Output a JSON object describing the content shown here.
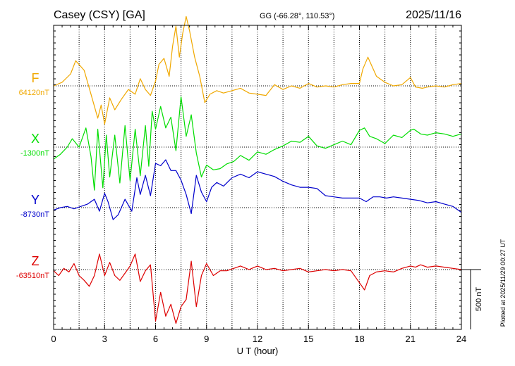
{
  "header": {
    "station": "Casey (CSY)  [GA]",
    "coords": "GG (-66.28°, 110.53°)",
    "date": "2025/11/16"
  },
  "footer": {
    "xlabel": "U T (hour)",
    "plotted": "Plotted at 2025/11/29 00:27 UT"
  },
  "scale_bar": {
    "label": "500 nT",
    "value_nT": 500
  },
  "colors": {
    "F": "#f0a800",
    "X": "#00dd00",
    "Y": "#0000cc",
    "Z": "#dd0000"
  },
  "chart_data": {
    "type": "line",
    "x_ticks": [
      "0",
      "3",
      "6",
      "9",
      "12",
      "15",
      "18",
      "21",
      "24"
    ],
    "xlim": [
      0,
      24
    ],
    "x_grid_step": 1.5,
    "series": [
      {
        "name": "F",
        "baseline_label": "64120nT",
        "baseline": 64120,
        "x": [
          0,
          0.5,
          1,
          1.3,
          1.8,
          2.2,
          2.6,
          2.8,
          3.0,
          3.3,
          3.6,
          4.0,
          4.4,
          4.8,
          5.1,
          5.4,
          5.7,
          6.0,
          6.2,
          6.5,
          6.8,
          7.0,
          7.2,
          7.4,
          7.6,
          7.8,
          8.0,
          8.3,
          8.6,
          8.9,
          9.2,
          9.6,
          10,
          10.5,
          11,
          11.5,
          12,
          12.5,
          13,
          13.5,
          14,
          14.5,
          15,
          15.5,
          16,
          16.5,
          17,
          17.5,
          18,
          18.2,
          18.5,
          19,
          19.5,
          20,
          20.5,
          21,
          21.3,
          21.7,
          22,
          22.5,
          23,
          23.5,
          24
        ],
        "y": [
          64120,
          64150,
          64220,
          64330,
          64250,
          64050,
          63850,
          63960,
          63800,
          64020,
          63920,
          64010,
          64090,
          64050,
          64180,
          64090,
          64040,
          64160,
          64300,
          64350,
          64200,
          64450,
          64620,
          64360,
          64560,
          64700,
          64580,
          64360,
          64200,
          63980,
          64050,
          64080,
          64060,
          64080,
          64100,
          64060,
          64050,
          64040,
          64130,
          64090,
          64120,
          64100,
          64140,
          64110,
          64120,
          64110,
          64130,
          64140,
          64140,
          64260,
          64360,
          64200,
          64150,
          64120,
          64130,
          64190,
          64110,
          64100,
          64110,
          64120,
          64110,
          64130,
          64140
        ]
      },
      {
        "name": "X",
        "baseline_label": "-1300nT",
        "baseline": -1300,
        "x": [
          0,
          0.4,
          0.8,
          1.1,
          1.5,
          1.9,
          2.2,
          2.4,
          2.6,
          2.9,
          3.1,
          3.3,
          3.6,
          3.9,
          4.2,
          4.5,
          4.8,
          5.1,
          5.4,
          5.6,
          5.8,
          6.0,
          6.3,
          6.6,
          6.9,
          7.2,
          7.5,
          7.8,
          8.1,
          8.4,
          8.7,
          9.0,
          9.4,
          9.8,
          10.2,
          10.6,
          11,
          11.5,
          12,
          12.5,
          13,
          13.5,
          14,
          14.5,
          15,
          15.5,
          16,
          16.5,
          17,
          17.5,
          18,
          18.3,
          18.6,
          19,
          19.5,
          20,
          20.5,
          21,
          21.2,
          21.6,
          22,
          22.5,
          23,
          23.5,
          24
        ],
        "y": [
          -1400,
          -1360,
          -1300,
          -1230,
          -1300,
          -1140,
          -1380,
          -1660,
          -1150,
          -1640,
          -1200,
          -1550,
          -1200,
          -1600,
          -1120,
          -1580,
          -1150,
          -1540,
          -1120,
          -1460,
          -1000,
          -1150,
          -960,
          -1140,
          -1050,
          -1330,
          -880,
          -1210,
          -1030,
          -1350,
          -1550,
          -1450,
          -1490,
          -1480,
          -1440,
          -1420,
          -1370,
          -1410,
          -1340,
          -1360,
          -1320,
          -1290,
          -1250,
          -1260,
          -1210,
          -1290,
          -1310,
          -1280,
          -1250,
          -1280,
          -1160,
          -1140,
          -1210,
          -1230,
          -1270,
          -1200,
          -1220,
          -1160,
          -1150,
          -1190,
          -1200,
          -1180,
          -1190,
          -1210,
          -1190
        ]
      },
      {
        "name": "Y",
        "baseline_label": "-8730nT",
        "baseline": -8730,
        "x": [
          0,
          0.4,
          0.8,
          1.2,
          1.6,
          2.0,
          2.4,
          2.7,
          3.0,
          3.2,
          3.5,
          3.8,
          4.2,
          4.6,
          4.9,
          5.1,
          5.4,
          5.7,
          6.0,
          6.3,
          6.6,
          6.9,
          7.2,
          7.5,
          7.8,
          8.1,
          8.4,
          8.7,
          9.0,
          9.3,
          9.6,
          10,
          10.5,
          11,
          11.5,
          12,
          12.5,
          13,
          13.5,
          14,
          14.5,
          15,
          15.5,
          16,
          16.5,
          17,
          17.5,
          18,
          18.4,
          18.8,
          19.2,
          19.6,
          20,
          20.5,
          21,
          21.5,
          22,
          22.5,
          23,
          23.5,
          24
        ],
        "y": [
          -8750,
          -8730,
          -8720,
          -8740,
          -8720,
          -8700,
          -8660,
          -8760,
          -8610,
          -8680,
          -8830,
          -8790,
          -8660,
          -8760,
          -8480,
          -8620,
          -8460,
          -8630,
          -8360,
          -8380,
          -8330,
          -8420,
          -8420,
          -8500,
          -8620,
          -8780,
          -8460,
          -8600,
          -8680,
          -8560,
          -8520,
          -8550,
          -8480,
          -8450,
          -8480,
          -8430,
          -8450,
          -8470,
          -8510,
          -8540,
          -8560,
          -8560,
          -8570,
          -8630,
          -8640,
          -8650,
          -8650,
          -8650,
          -8680,
          -8640,
          -8640,
          -8650,
          -8640,
          -8650,
          -8660,
          -8670,
          -8690,
          -8680,
          -8700,
          -8720,
          -8770
        ]
      },
      {
        "name": "Z",
        "baseline_label": "-63510nT",
        "baseline": -63510,
        "x": [
          0,
          0.3,
          0.6,
          0.9,
          1.2,
          1.5,
          1.8,
          2.1,
          2.4,
          2.7,
          3.0,
          3.3,
          3.6,
          3.9,
          4.2,
          4.5,
          4.8,
          5.1,
          5.4,
          5.7,
          6.0,
          6.3,
          6.6,
          6.9,
          7.2,
          7.5,
          7.8,
          8.1,
          8.4,
          8.7,
          9.0,
          9.4,
          9.8,
          10.2,
          10.6,
          11,
          11.5,
          12,
          12.5,
          13,
          13.5,
          14,
          14.5,
          15,
          15.5,
          16,
          16.5,
          17,
          17.5,
          18,
          18.3,
          18.6,
          19,
          19.5,
          20,
          20.5,
          21,
          21.3,
          21.6,
          22,
          22.5,
          23,
          23.5,
          24
        ],
        "y": [
          -63520,
          -63560,
          -63500,
          -63530,
          -63460,
          -63560,
          -63600,
          -63650,
          -63560,
          -63380,
          -63560,
          -63450,
          -63560,
          -63600,
          -63540,
          -63480,
          -63380,
          -63610,
          -63520,
          -63470,
          -63940,
          -63700,
          -63900,
          -63800,
          -63960,
          -63820,
          -63760,
          -63440,
          -63820,
          -63560,
          -63460,
          -63560,
          -63520,
          -63520,
          -63500,
          -63480,
          -63510,
          -63480,
          -63510,
          -63500,
          -63520,
          -63510,
          -63500,
          -63530,
          -63520,
          -63510,
          -63520,
          -63510,
          -63520,
          -63620,
          -63680,
          -63560,
          -63530,
          -63520,
          -63530,
          -63500,
          -63480,
          -63490,
          -63470,
          -63490,
          -63480,
          -63490,
          -63500,
          -63510
        ]
      }
    ]
  }
}
